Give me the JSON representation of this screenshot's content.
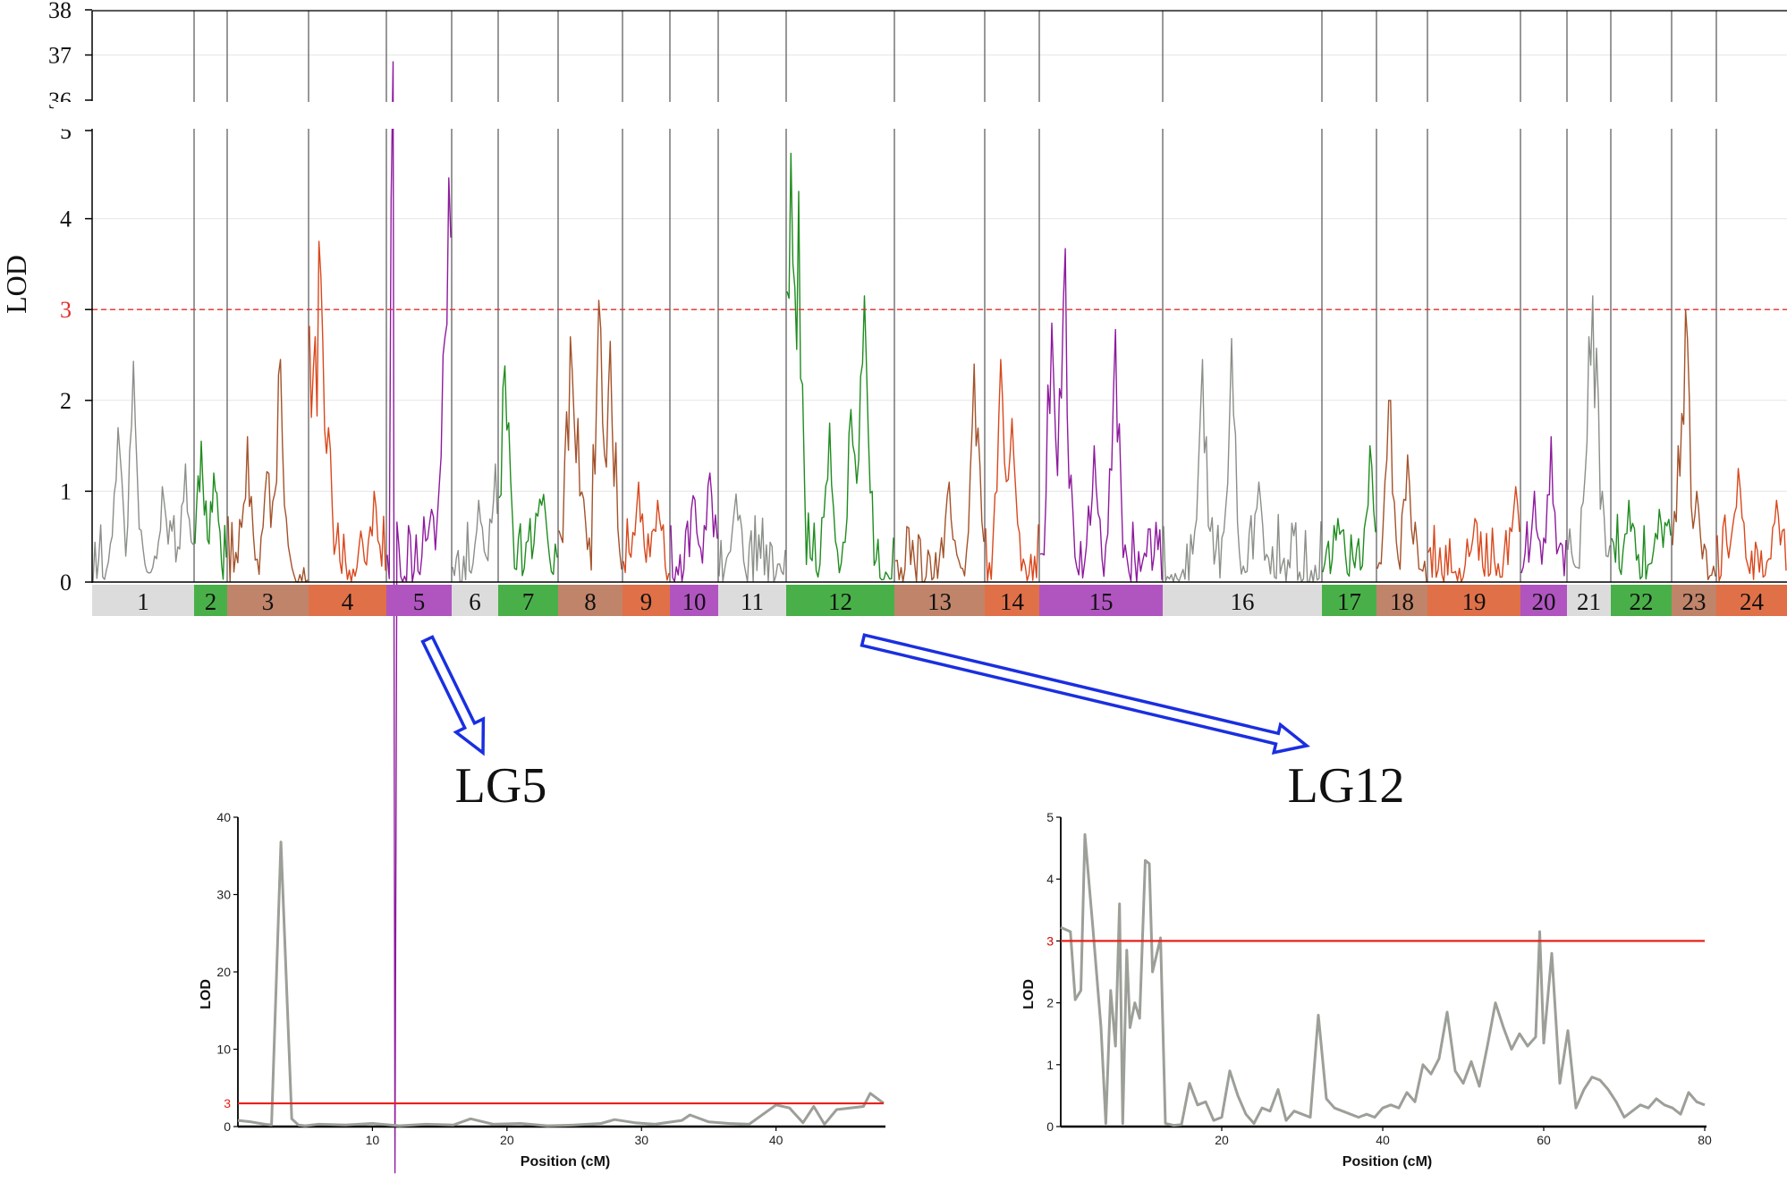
{
  "colors": {
    "threshold_main": "#e0302a",
    "threshold_sub": "#e8201a",
    "arrow": "#1a2fe0",
    "axis": "#000000",
    "grid": "#e6e6e6",
    "chrom_divider": "#555555",
    "gray": "#8a8f88",
    "green": "#1f8c1f",
    "brown": "#a3522a",
    "orange": "#d9481c",
    "purple": "#8e1a9e",
    "band_gray": "#dcdcdc",
    "band_green": "#49b049",
    "band_brown": "#c0846a",
    "band_orange": "#e07048",
    "band_purple": "#b055c0"
  },
  "chart_data": [
    {
      "id": "genome_scan",
      "type": "line",
      "ylabel": "LOD",
      "threshold": 3,
      "threshold_label": "3",
      "y_ticks": [
        "0",
        "1",
        "2",
        "3",
        "4",
        "5",
        "36",
        "37",
        "38"
      ],
      "y_segments": [
        {
          "range": [
            0,
            5
          ]
        },
        {
          "range": [
            36,
            38
          ]
        }
      ],
      "chromosomes": [
        {
          "label": "1",
          "color": "gray",
          "peaks": [
            [
              0.4,
              2.43
            ],
            [
              0.25,
              1.7
            ],
            [
              0.7,
              1.05
            ],
            [
              0.92,
              1.3
            ]
          ]
        },
        {
          "label": "2",
          "color": "green",
          "peaks": [
            [
              0.2,
              1.55
            ],
            [
              0.6,
              1.2
            ]
          ]
        },
        {
          "label": "3",
          "color": "brown",
          "peaks": [
            [
              0.25,
              1.6
            ],
            [
              0.65,
              2.45
            ],
            [
              0.5,
              1.3
            ]
          ]
        },
        {
          "label": "4",
          "color": "orange",
          "peaks": [
            [
              0.0,
              2.82
            ],
            [
              0.13,
              3.75
            ],
            [
              0.08,
              2.7
            ],
            [
              0.25,
              1.7
            ],
            [
              0.85,
              1.0
            ]
          ]
        },
        {
          "label": "5",
          "color": "purple",
          "peaks": [
            [
              0.1,
              36.85
            ],
            [
              0.88,
              2.5
            ],
            [
              0.97,
              4.45
            ],
            [
              0.7,
              0.8
            ]
          ]
        },
        {
          "label": "6",
          "color": "gray",
          "peaks": [
            [
              0.95,
              1.3
            ],
            [
              0.6,
              0.9
            ]
          ]
        },
        {
          "label": "7",
          "color": "green",
          "peaks": [
            [
              0.1,
              2.38
            ],
            [
              0.75,
              1.5
            ]
          ]
        },
        {
          "label": "8",
          "color": "brown",
          "peaks": [
            [
              0.18,
              2.7
            ],
            [
              0.65,
              3.1
            ],
            [
              0.82,
              2.65
            ],
            [
              0.3,
              1.8
            ]
          ]
        },
        {
          "label": "9",
          "color": "orange",
          "peaks": [
            [
              0.35,
              1.1
            ],
            [
              0.75,
              0.9
            ]
          ]
        },
        {
          "label": "10",
          "color": "purple",
          "peaks": [
            [
              0.5,
              1.0
            ],
            [
              0.85,
              1.2
            ]
          ]
        },
        {
          "label": "11",
          "color": "gray",
          "peaks": [
            [
              0.25,
              0.97
            ]
          ]
        },
        {
          "label": "12",
          "color": "green",
          "peaks": [
            [
              0.03,
              4.72
            ],
            [
              0.1,
              4.3
            ],
            [
              0.0,
              3.2
            ],
            [
              0.72,
              3.15
            ],
            [
              0.6,
              1.9
            ],
            [
              0.4,
              1.75
            ]
          ]
        },
        {
          "label": "13",
          "color": "brown",
          "peaks": [
            [
              0.6,
              1.1
            ],
            [
              0.9,
              2.4
            ]
          ]
        },
        {
          "label": "14",
          "color": "orange",
          "peaks": [
            [
              0.3,
              2.45
            ],
            [
              0.5,
              1.8
            ]
          ]
        },
        {
          "label": "15",
          "color": "purple",
          "peaks": [
            [
              0.1,
              2.85
            ],
            [
              0.2,
              3.67
            ],
            [
              0.62,
              2.78
            ],
            [
              0.45,
              1.5
            ]
          ]
        },
        {
          "label": "16",
          "color": "gray",
          "peaks": [
            [
              0.25,
              2.45
            ],
            [
              0.43,
              2.68
            ],
            [
              0.6,
              1.1
            ]
          ]
        },
        {
          "label": "17",
          "color": "green",
          "peaks": [
            [
              0.9,
              1.5
            ],
            [
              0.3,
              0.7
            ]
          ]
        },
        {
          "label": "18",
          "color": "brown",
          "peaks": [
            [
              0.25,
              2.0
            ],
            [
              0.6,
              1.4
            ]
          ]
        },
        {
          "label": "19",
          "color": "orange",
          "peaks": [
            [
              0.95,
              1.05
            ],
            [
              0.5,
              0.7
            ]
          ]
        },
        {
          "label": "20",
          "color": "purple",
          "peaks": [
            [
              0.65,
              1.6
            ],
            [
              0.3,
              1.0
            ]
          ]
        },
        {
          "label": "21",
          "color": "gray",
          "peaks": [
            [
              0.6,
              3.15
            ],
            [
              0.5,
              2.7
            ],
            [
              0.8,
              1.0
            ]
          ]
        },
        {
          "label": "22",
          "color": "green",
          "peaks": [
            [
              0.3,
              0.9
            ],
            [
              0.8,
              0.8
            ]
          ]
        },
        {
          "label": "23",
          "color": "brown",
          "peaks": [
            [
              0.3,
              3.0
            ],
            [
              0.15,
              1.5
            ],
            [
              0.55,
              1.0
            ]
          ]
        },
        {
          "label": "24",
          "color": "orange",
          "peaks": [
            [
              0.3,
              1.25
            ],
            [
              0.85,
              0.9
            ]
          ]
        }
      ]
    },
    {
      "id": "LG5",
      "type": "line",
      "title": "LG5",
      "xlabel": "Position (cM)",
      "ylabel": "LOD",
      "xlim": [
        0,
        48
      ],
      "ylim": [
        0,
        40
      ],
      "x_ticks": [
        "10",
        "20",
        "30",
        "40"
      ],
      "y_ticks": [
        "0",
        "10",
        "20",
        "30",
        "40"
      ],
      "threshold": 3,
      "threshold_label": "3",
      "x": [
        0,
        1,
        2,
        2.5,
        3.2,
        4,
        4.5,
        5,
        6,
        8,
        10,
        12,
        14,
        16,
        17.3,
        19,
        21,
        23,
        25,
        27,
        28,
        29.5,
        31,
        33,
        33.6,
        35,
        36.5,
        38,
        40,
        41,
        42,
        42.8,
        43.6,
        44.5,
        46.5,
        47,
        48
      ],
      "values": [
        0.8,
        0.6,
        0.3,
        0.2,
        36.8,
        1.0,
        0.2,
        0.1,
        0.3,
        0.2,
        0.4,
        0.1,
        0.3,
        0.2,
        1.0,
        0.3,
        0.4,
        0.1,
        0.2,
        0.4,
        0.9,
        0.5,
        0.3,
        0.8,
        1.5,
        0.6,
        0.4,
        0.3,
        2.8,
        2.4,
        0.5,
        2.6,
        0.3,
        2.2,
        2.6,
        4.3,
        3.0
      ]
    },
    {
      "id": "LG12",
      "type": "line",
      "title": "LG12",
      "xlabel": "Position (cM)",
      "ylabel": "LOD",
      "xlim": [
        0,
        80
      ],
      "ylim": [
        0,
        5
      ],
      "x_ticks": [
        "20",
        "40",
        "60",
        "80"
      ],
      "y_ticks": [
        "0",
        "1",
        "2",
        "3",
        "4",
        "5"
      ],
      "threshold": 3,
      "threshold_label": "3",
      "x": [
        0,
        1.2,
        1.8,
        2.5,
        3,
        4,
        5,
        5.6,
        6.2,
        6.8,
        7.3,
        7.7,
        8.2,
        8.6,
        9.2,
        9.8,
        10.5,
        11,
        11.4,
        12.4,
        13,
        14,
        15,
        16,
        17,
        18,
        19,
        20,
        21,
        22,
        23,
        24,
        25,
        26,
        27,
        28,
        29,
        30,
        31,
        32,
        33,
        34,
        35,
        36,
        37,
        38,
        39,
        40,
        41,
        42,
        43,
        44,
        45,
        46,
        47,
        48,
        49,
        50,
        51,
        52,
        53,
        54,
        55,
        56,
        57,
        58,
        59,
        59.5,
        60,
        61,
        62,
        63,
        64,
        65,
        66,
        67,
        68,
        69,
        70,
        71,
        72,
        73,
        74,
        75,
        76,
        77,
        78,
        79,
        80
      ],
      "values": [
        3.22,
        3.15,
        2.05,
        2.2,
        4.72,
        3.2,
        1.6,
        0.05,
        2.2,
        1.3,
        3.6,
        0.05,
        2.85,
        1.6,
        2.0,
        1.75,
        4.3,
        4.25,
        2.5,
        3.05,
        0.05,
        0.02,
        0.03,
        0.7,
        0.35,
        0.4,
        0.1,
        0.15,
        0.9,
        0.5,
        0.2,
        0.05,
        0.3,
        0.25,
        0.6,
        0.1,
        0.25,
        0.2,
        0.15,
        1.8,
        0.45,
        0.3,
        0.25,
        0.2,
        0.15,
        0.2,
        0.15,
        0.3,
        0.35,
        0.3,
        0.55,
        0.4,
        1.0,
        0.85,
        1.1,
        1.85,
        0.9,
        0.7,
        1.05,
        0.65,
        1.3,
        2.0,
        1.6,
        1.25,
        1.5,
        1.3,
        1.45,
        3.15,
        1.35,
        2.8,
        0.7,
        1.55,
        0.3,
        0.6,
        0.8,
        0.75,
        0.6,
        0.4,
        0.15,
        0.25,
        0.35,
        0.3,
        0.45,
        0.35,
        0.3,
        0.2,
        0.55,
        0.4,
        0.35
      ]
    }
  ]
}
